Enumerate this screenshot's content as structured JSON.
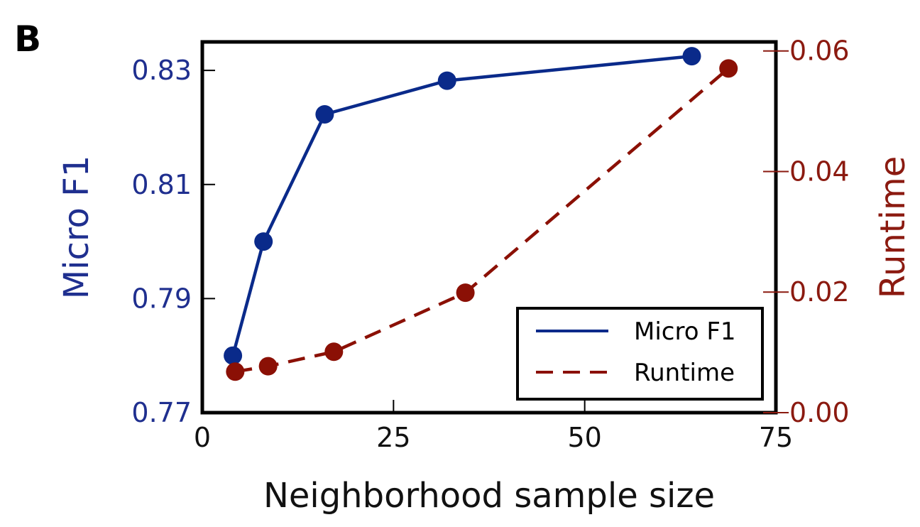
{
  "panel_label": "B",
  "chart_data": {
    "type": "line",
    "xlabel": "Neighborhood sample size",
    "xlim": [
      0,
      75
    ],
    "xticks": [
      0,
      25,
      50,
      75
    ],
    "xtick_labels": [
      "0",
      "25",
      "50",
      "75"
    ],
    "y_left": {
      "label": "Micro F1",
      "color": "#1f2f8f",
      "lim": [
        0.77,
        0.835
      ],
      "ticks": [
        0.77,
        0.79,
        0.81,
        0.83
      ],
      "tick_labels": [
        "0.77",
        "0.79",
        "0.81",
        "0.83"
      ]
    },
    "y_right": {
      "label": "Runtime",
      "color": "#8b1a10",
      "lim": [
        0,
        0.0615
      ],
      "ticks": [
        0,
        0.02,
        0.04,
        0.06
      ],
      "tick_labels": [
        "0.00",
        "0.02",
        "0.04",
        "0.06"
      ]
    },
    "series": [
      {
        "name": "Micro F1",
        "axis": "left",
        "style": "solid",
        "color": "#0a2a8a",
        "x": [
          4,
          8,
          16,
          32,
          64
        ],
        "y": [
          0.78,
          0.8,
          0.8223,
          0.8282,
          0.8325
        ]
      },
      {
        "name": "Runtime",
        "axis": "right",
        "style": "dashed",
        "color": "#8b1005",
        "x": [
          4.3,
          8.6,
          17.2,
          34.4,
          68.8
        ],
        "y": [
          0.0068,
          0.0077,
          0.0101,
          0.0199,
          0.0571
        ]
      }
    ],
    "legend": {
      "position": "lower-right",
      "entries": [
        "Micro F1",
        "Runtime"
      ]
    },
    "grid": false
  }
}
